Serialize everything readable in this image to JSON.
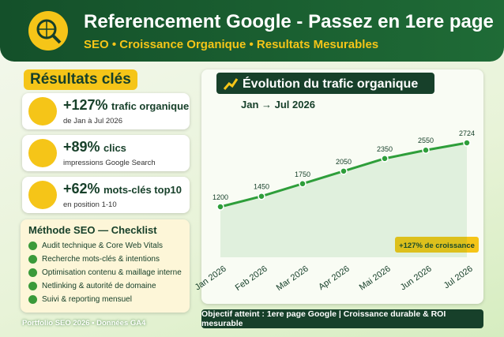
{
  "header": {
    "title": "Referencement Google - Passez en 1ere page",
    "subtitle": "SEO • Croissance Organique • Resultats Mesurables"
  },
  "results": {
    "title": "Résultats clés",
    "items": [
      {
        "value": "+127%",
        "label": "trafic organique",
        "detail": "de Jan à Jul 2026"
      },
      {
        "value": "+89%",
        "label": "clics",
        "detail": "impressions Google Search"
      },
      {
        "value": "+62%",
        "label": "mots-clés top10",
        "detail": "en position 1-10"
      }
    ]
  },
  "checklist": {
    "title": "Méthode SEO — Checklist",
    "items": [
      "Audit technique & Core Web Vitals",
      "Recherche mots-clés & intentions",
      "Optimisation contenu & maillage interne",
      "Netlinking & autorité de domaine",
      "Suivi & reporting mensuel"
    ]
  },
  "footer": "Portfolio SEO 2026 • Données GA4",
  "chart_data": {
    "type": "line",
    "title": "Évolution du trafic organique",
    "subtitle": "Jan → Jul 2026",
    "categories": [
      "Jan 2026",
      "Feb 2026",
      "Mar 2026",
      "Apr 2026",
      "Mai 2026",
      "Jun 2026",
      "Jul 2026"
    ],
    "values": [
      1200,
      1450,
      1750,
      2050,
      2350,
      2550,
      2724
    ],
    "color": "#2e9e3a",
    "annotation": "+127% de croissance"
  },
  "banner": "Objectif atteint : 1ere page Google | Croissance durable & ROI mesurable"
}
